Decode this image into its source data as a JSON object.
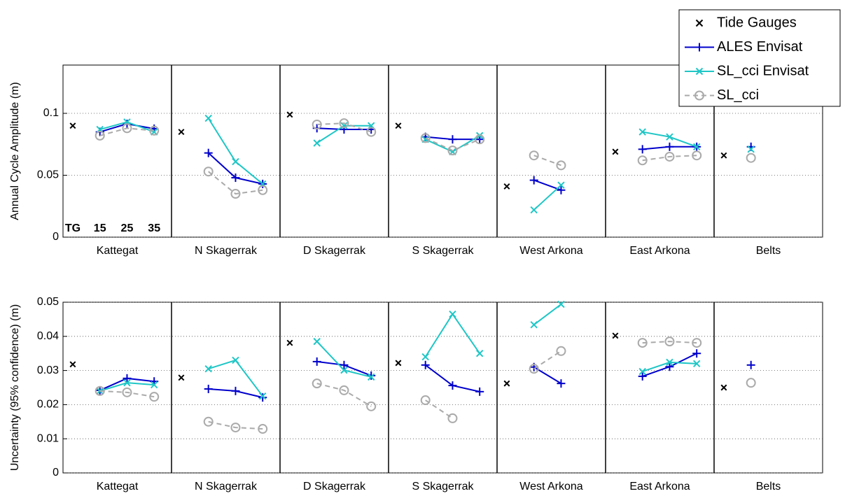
{
  "chart_data": [
    {
      "type": "line",
      "ylabel": "Annual Cycle Amplitude (m)",
      "categories": [
        "Kattegat",
        "N Skagerrak",
        "D Skagerrak",
        "S Skagerrak",
        "West Arkona",
        "East Arkona",
        "Belts"
      ],
      "subcategories": [
        "TG",
        "15",
        "25",
        "35"
      ],
      "ylim": [
        0,
        0.139
      ],
      "yticks": [
        0,
        0.05,
        0.1
      ],
      "grid": true,
      "legend": "upper right",
      "series": [
        {
          "name": "Tide Gauges",
          "color": "#000000",
          "marker": "x",
          "linestyle": "none",
          "values": [
            [
              0.09,
              null,
              null,
              null
            ],
            [
              0.085,
              null,
              null,
              null
            ],
            [
              0.099,
              null,
              null,
              null
            ],
            [
              0.09,
              null,
              null,
              null
            ],
            [
              0.041,
              null,
              null,
              null
            ],
            [
              0.069,
              null,
              null,
              null
            ],
            [
              0.066,
              null,
              null,
              null
            ]
          ]
        },
        {
          "name": "ALES Envisat",
          "color": "#0000cc",
          "marker": "+",
          "linestyle": "solid",
          "values": [
            [
              null,
              0.085,
              0.0915,
              0.0876
            ],
            [
              null,
              0.068,
              0.048,
              0.043
            ],
            [
              null,
              0.088,
              0.087,
              0.087
            ],
            [
              null,
              0.081,
              0.079,
              0.079
            ],
            [
              null,
              0.046,
              0.038,
              null
            ],
            [
              null,
              0.071,
              0.073,
              0.073
            ],
            [
              null,
              0.073,
              null,
              null
            ]
          ]
        },
        {
          "name": "SL_cci Envisat",
          "color": "#1fc6c6",
          "marker": "x",
          "linestyle": "solid",
          "values": [
            [
              null,
              0.087,
              0.093,
              0.085
            ],
            [
              null,
              0.096,
              0.061,
              0.043
            ],
            [
              null,
              0.076,
              0.09,
              0.09
            ],
            [
              null,
              0.079,
              0.069,
              0.082
            ],
            [
              null,
              0.022,
              0.042,
              null
            ],
            [
              null,
              0.085,
              0.081,
              0.073
            ],
            [
              null,
              0.071,
              null,
              null
            ]
          ]
        },
        {
          "name": "SL_cci",
          "color": "#aaaaaa",
          "marker": "o",
          "linestyle": "dashed",
          "values": [
            [
              null,
              0.082,
              0.088,
              0.086
            ],
            [
              null,
              0.053,
              0.035,
              0.038
            ],
            [
              null,
              0.091,
              0.092,
              0.085
            ],
            [
              null,
              0.08,
              0.07,
              0.079
            ],
            [
              null,
              0.066,
              0.058,
              null
            ],
            [
              null,
              0.062,
              0.065,
              0.066
            ],
            [
              null,
              0.064,
              null,
              null
            ]
          ]
        }
      ]
    },
    {
      "type": "line",
      "ylabel": "Uncertainty (95% confidence) (m)",
      "categories": [
        "Kattegat",
        "N Skagerrak",
        "D Skagerrak",
        "S Skagerrak",
        "West Arkona",
        "East Arkona",
        "Belts"
      ],
      "ylim": [
        0,
        0.05
      ],
      "yticks": [
        0,
        0.01,
        0.02,
        0.03,
        0.04,
        0.05
      ],
      "grid": true,
      "series": [
        {
          "color": "#000000",
          "marker": "x",
          "linestyle": "none",
          "values": [
            [
              0.0318,
              null,
              null,
              null
            ],
            [
              0.0279,
              null,
              null,
              null
            ],
            [
              0.0381,
              null,
              null,
              null
            ],
            [
              0.0322,
              null,
              null,
              null
            ],
            [
              0.0262,
              null,
              null,
              null
            ],
            [
              0.0402,
              null,
              null,
              null
            ],
            [
              0.025,
              null,
              null,
              null
            ]
          ]
        },
        {
          "color": "#0000cc",
          "marker": "+",
          "linestyle": "solid",
          "values": [
            [
              null,
              0.0242,
              0.0277,
              0.0268
            ],
            [
              null,
              0.0246,
              0.024,
              0.0221
            ],
            [
              null,
              0.0326,
              0.0316,
              0.0285
            ],
            [
              null,
              0.0316,
              0.0256,
              0.0238
            ],
            [
              null,
              0.031,
              0.0262,
              null
            ],
            [
              null,
              0.0283,
              0.0311,
              0.035
            ],
            [
              null,
              0.0316,
              null,
              null
            ]
          ]
        },
        {
          "color": "#1fc6c6",
          "marker": "x",
          "linestyle": "solid",
          "values": [
            [
              null,
              0.024,
              0.0264,
              0.0258
            ],
            [
              null,
              0.0305,
              0.033,
              0.0225
            ],
            [
              null,
              0.0385,
              0.0301,
              0.0281
            ],
            [
              null,
              0.034,
              0.0465,
              0.035
            ],
            [
              null,
              0.0434,
              0.0494,
              null
            ],
            [
              null,
              0.0297,
              0.0324,
              0.032
            ],
            [
              null,
              null,
              null,
              null
            ]
          ]
        },
        {
          "color": "#aaaaaa",
          "marker": "o",
          "linestyle": "dashed",
          "values": [
            [
              null,
              0.024,
              0.0236,
              0.0223
            ],
            [
              null,
              0.015,
              0.0133,
              0.0129
            ],
            [
              null,
              0.0262,
              0.0242,
              0.0195
            ],
            [
              null,
              0.0213,
              0.016,
              null
            ],
            [
              null,
              0.0305,
              0.0357,
              null
            ],
            [
              null,
              0.0381,
              0.0385,
              0.0381
            ],
            [
              null,
              0.0264,
              null,
              null
            ]
          ]
        }
      ]
    }
  ]
}
